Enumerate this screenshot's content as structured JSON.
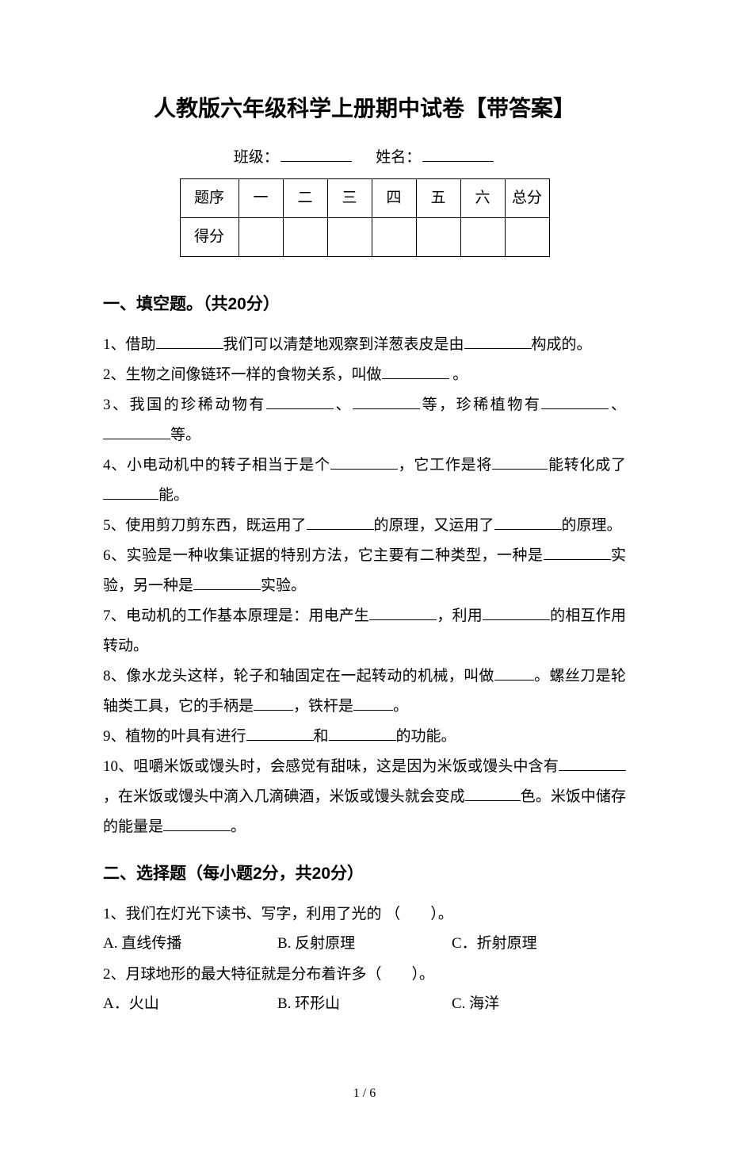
{
  "title": "人教版六年级科学上册期中试卷【带答案】",
  "classLabel": "班级：",
  "nameLabel": "姓名：",
  "scoreTable": {
    "header": [
      "题序",
      "一",
      "二",
      "三",
      "四",
      "五",
      "六",
      "总分"
    ],
    "row2Label": "得分"
  },
  "section1": {
    "heading": "一、填空题。（共20分）",
    "q1_a": "1、借助",
    "q1_b": "我们可以清楚地观察到洋葱表皮是由",
    "q1_c": "构成的。",
    "q2_a": "2、生物之间像链环一样的食物关系，叫做",
    "q2_b": " 。",
    "q3_a": "3、我国的珍稀动物有",
    "q3_b": "、",
    "q3_c": "等，珍稀植物有",
    "q3_d": "、",
    "q3_e": "等。",
    "q4_a": "4、小电动机中的转子相当于是个",
    "q4_b": "，它工作是将",
    "q4_c": "能转化成了",
    "q4_d": "能。",
    "q5_a": "5、使用剪刀剪东西，既运用了",
    "q5_b": "的原理，又运用了",
    "q5_c": "的原理。",
    "q6_a": "6、实验是一种收集证据的特别方法，它主要有二种类型，一种是",
    "q6_b": "实验，另一种是",
    "q6_c": "实验。",
    "q7_a": "7、电动机的工作基本原理是：用电产生",
    "q7_b": "，利用",
    "q7_c": "的相互作用转动。",
    "q8_a": "8、像水龙头这样，轮子和轴固定在一起转动的机械，叫做",
    "q8_b": "。螺丝刀是轮轴类工具，它的手柄是",
    "q8_c": "，铁杆是",
    "q8_d": "。",
    "q9_a": "9、植物的叶具有进行",
    "q9_b": "和",
    "q9_c": "的功能。",
    "q10_a": "10、咀嚼米饭或馒头时，会感觉有甜味，这是因为米饭或馒头中含有",
    "q10_b": "，在米饭或馒头中滴入几滴碘酒，米饭或馒头就会变成",
    "q10_c": "色。米饭中储存的能量是",
    "q10_d": "。"
  },
  "section2": {
    "heading": "二、选择题（每小题2分，共20分）",
    "q1": "1、我们在灯光下读书、写字，利用了光的 （　　）。",
    "q1_optA": "A. 直线传播",
    "q1_optB": "B. 反射原理",
    "q1_optC": "C．折射原理",
    "q2": "2、月球地形的最大特征就是分布着许多（　　）。",
    "q2_optA": "A．火山",
    "q2_optB": "B. 环形山",
    "q2_optC": "C. 海洋"
  },
  "footer": "1 / 6"
}
